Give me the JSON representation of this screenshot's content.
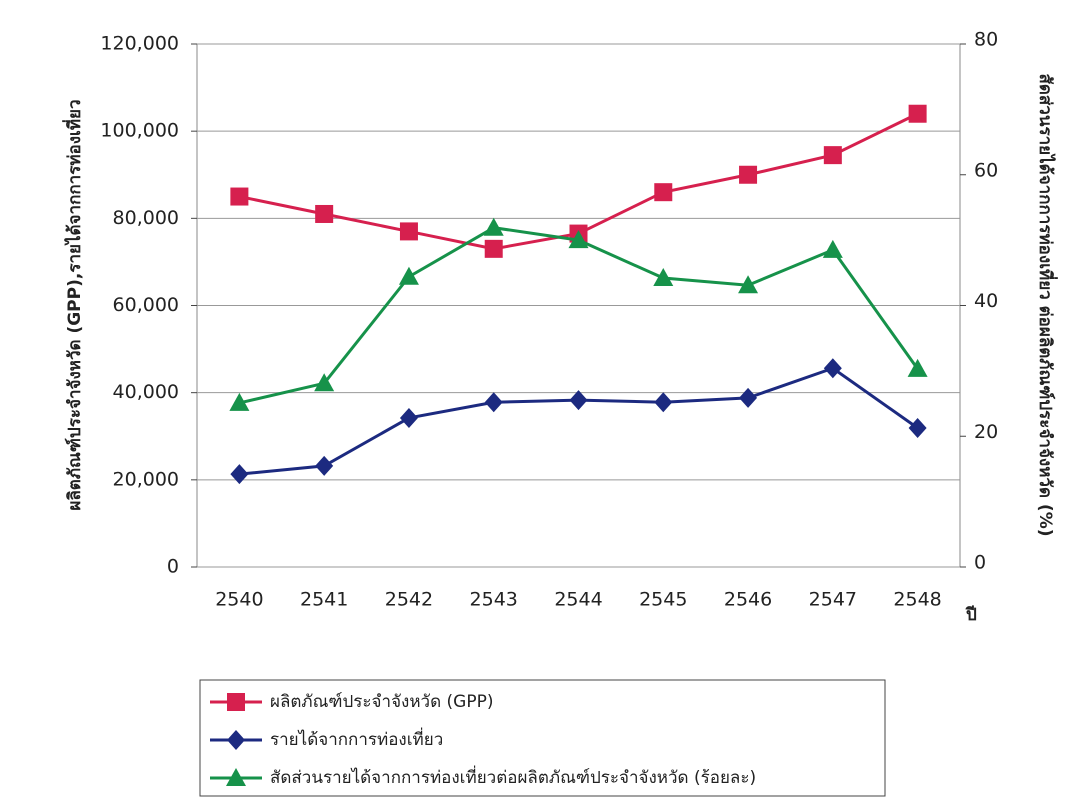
{
  "chart_data": {
    "type": "line",
    "y_label": "ผลิตภัณฑ์ประจำจังหวัด (GPP),รายได้จากการท่องเที่ยว",
    "y2_label": "สัดส่วนรายได้จากการท่องเที่ยว ต่อผลิตภัณฑ์ประจำจังหวัด (%)",
    "x_label": "ปี",
    "categories": [
      "2540",
      "2541",
      "2542",
      "2543",
      "2544",
      "2545",
      "2546",
      "2547",
      "2548"
    ],
    "ylim": [
      0,
      120000
    ],
    "yticks": [
      0,
      {
        "value": 20000,
        "label": "20,000"
      },
      {
        "value": 40000,
        "label": "40,000"
      },
      {
        "value": 60000,
        "label": "60,000"
      },
      {
        "value": 80000,
        "label": "80,000"
      },
      {
        "value": 100000,
        "label": "100,000"
      },
      {
        "value": 120000,
        "label": "120,000"
      }
    ],
    "y2lim": [
      0,
      80
    ],
    "y2ticks": [
      0,
      20,
      40,
      60,
      80
    ],
    "grid": true,
    "series": [
      {
        "name": "ผลิตภัณฑ์ประจำจังหวัด (GPP)",
        "color": "#d6204e",
        "marker": "square",
        "values": [
          85000,
          81000,
          77000,
          73000,
          76500,
          86000,
          90000,
          94500,
          104000
        ]
      },
      {
        "name": "รายได้จากการท่องเที่ยว",
        "color": "#1c2a80",
        "marker": "diamond",
        "values": [
          21300,
          23200,
          34200,
          37800,
          38300,
          37800,
          38800,
          45600,
          31900
        ]
      },
      {
        "name": "สัดส่วนรายได้จากการท่องเที่ยวต่อผลิตภัณฑ์ประจำจังหวัด  (ร้อยละ)",
        "color": "#16924a",
        "marker": "triangle",
        "axis": "y2",
        "values": [
          25.1,
          28.1,
          44.4,
          51.9,
          50.0,
          44.2,
          43.1,
          48.5,
          30.3
        ]
      }
    ]
  }
}
